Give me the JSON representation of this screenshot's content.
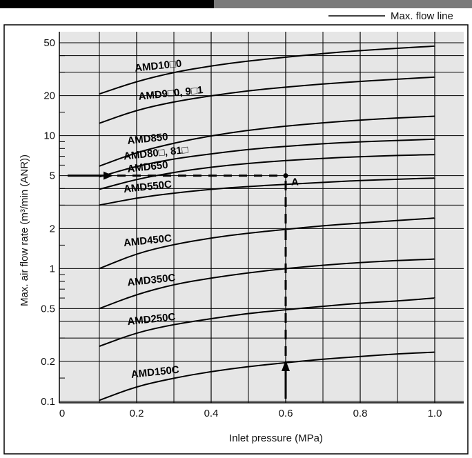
{
  "header_bar": {
    "dark_color": "#000000",
    "grey_color": "#7a7a7a"
  },
  "legend": {
    "label": "Max. flow line"
  },
  "chart_data": {
    "type": "line",
    "scale_y": "log",
    "grid": true,
    "background": "#e6e6e6",
    "xlabel": "Inlet pressure (MPa)",
    "ylabel": "Max. air flow rate (m³/min (ANR))",
    "xlim": [
      0,
      1.0
    ],
    "ylim": [
      0.1,
      60
    ],
    "x_ticks": [
      "0",
      "0.2",
      "0.4",
      "0.6",
      "0.8",
      "1.0"
    ],
    "y_ticks": [
      "0.1",
      "0.2",
      "0.5",
      "1",
      "2",
      "5",
      "10",
      "20",
      "50"
    ],
    "x": [
      0.1,
      0.2,
      0.3,
      0.4,
      0.5,
      0.6,
      0.7,
      0.8,
      0.9,
      1.0
    ],
    "series": [
      {
        "name": "AMD10□0",
        "values": [
          20.6,
          25.6,
          30.0,
          33.5,
          36.5,
          39.0,
          41.5,
          43.7,
          45.5,
          47.2
        ],
        "label_pos": [
          0.27,
          0.37
        ]
      },
      {
        "name": "AMD9□0, 9□1",
        "values": [
          12.4,
          15.6,
          18.0,
          20.0,
          21.8,
          23.2,
          24.5,
          25.6,
          26.6,
          27.6
        ],
        "label_pos": [
          0.28,
          0.34
        ]
      },
      {
        "name": "AMD850",
        "values": [
          5.9,
          7.5,
          8.8,
          10.0,
          11.0,
          11.8,
          12.5,
          13.1,
          13.6,
          14.0
        ],
        "label_pos": [
          0.25,
          0.32
        ]
      },
      {
        "name": "AMD80□, 81□",
        "values": [
          4.9,
          5.9,
          6.7,
          7.3,
          7.9,
          8.3,
          8.7,
          9.0,
          9.2,
          9.4
        ],
        "label_pos": [
          0.24,
          0.44
        ]
      },
      {
        "name": "AMD650",
        "values": [
          3.95,
          4.7,
          5.3,
          5.8,
          6.2,
          6.5,
          6.75,
          6.95,
          7.1,
          7.2
        ],
        "label_pos": [
          0.25,
          0.36
        ]
      },
      {
        "name": "AMD550C",
        "values": [
          3.0,
          3.4,
          3.7,
          3.95,
          4.15,
          4.3,
          4.45,
          4.6,
          4.7,
          4.8
        ],
        "label_pos": [
          0.24,
          0.42
        ]
      },
      {
        "name": "AMD450C",
        "values": [
          1.0,
          1.3,
          1.52,
          1.7,
          1.85,
          1.97,
          2.1,
          2.2,
          2.3,
          2.4
        ],
        "label_pos": [
          0.24,
          0.42
        ]
      },
      {
        "name": "AMD350C",
        "values": [
          0.5,
          0.64,
          0.76,
          0.85,
          0.93,
          1.0,
          1.06,
          1.11,
          1.15,
          1.18
        ],
        "label_pos": [
          0.25,
          0.43
        ]
      },
      {
        "name": "AMD250C",
        "values": [
          0.26,
          0.33,
          0.38,
          0.42,
          0.46,
          0.49,
          0.52,
          0.55,
          0.57,
          0.6
        ],
        "label_pos": [
          0.25,
          0.43
        ]
      },
      {
        "name": "AMD150C",
        "values": [
          0.102,
          0.13,
          0.15,
          0.168,
          0.183,
          0.196,
          0.208,
          0.218,
          0.228,
          0.235
        ],
        "label_pos": [
          0.26,
          0.45
        ]
      }
    ],
    "annotation": {
      "label": "A",
      "point": [
        0.6,
        5
      ],
      "horizontal_arrow": {
        "x_from": 0.0,
        "x_to": 0.6,
        "y": 5
      },
      "vertical_arrow": {
        "x": 0.6,
        "y_from": 0.1,
        "y_to": 5
      }
    }
  }
}
